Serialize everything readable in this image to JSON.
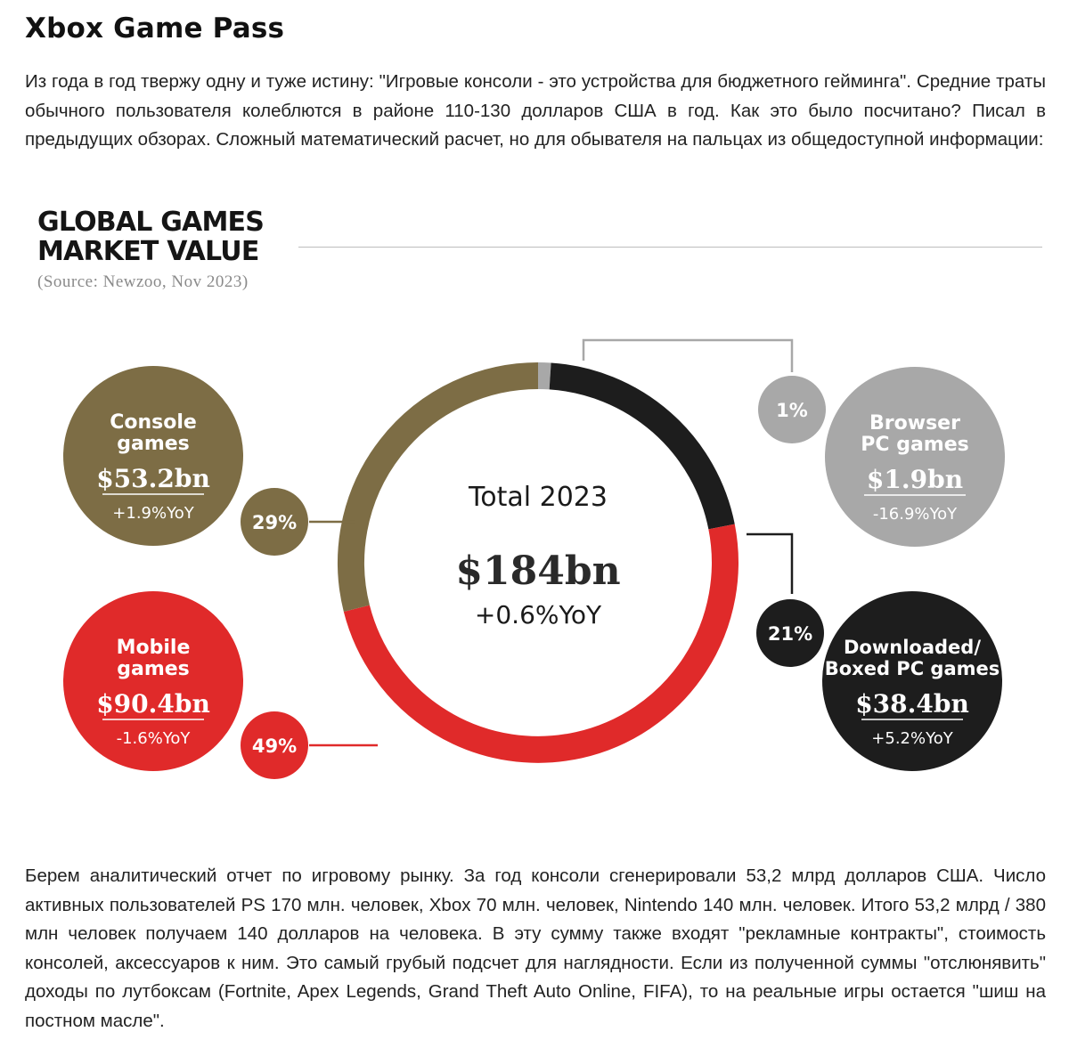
{
  "article": {
    "title": "Xbox Game Pass",
    "intro": "Из года в год твержу одну и туже истину: \"Игровые консоли - это устройства для бюджетного гейминга\". Средние траты обычного пользователя колеблются в районе 110-130 долларов США в год. Как это было посчитано? Писал в предыдущих обзорах. Сложный математический расчет, но для обывателя на пальцах из общедоступной информации:",
    "outro": "Берем аналитический отчет по игровому рынку. За год консоли сгенерировали 53,2 млрд долларов США. Число активных пользователей PS 170 млн. человек, Xbox 70 млн. человек, Nintendo 140 млн. человек. Итого 53,2 млрд / 380 млн человек получаем 140 долларов на человека. В эту сумму также входят \"рекламные контракты\", стоимость консолей, аксессуаров к ним. Это самый грубый подсчет для наглядности. Если из полученной суммы \"отслюнявить\" доходы по лутбоксам (Fortnite, Apex Legends, Grand Theft Auto Online, FIFA), то на реальные игры остается \"шиш на постном масле\"."
  },
  "chart_data": {
    "type": "pie",
    "title": "GLOBAL GAMES MARKET VALUE",
    "title_lines": [
      "GLOBAL GAMES",
      "MARKET VALUE"
    ],
    "source": "(Source: Newzoo, Nov 2023)",
    "center": {
      "label": "Total 2023",
      "value": "$184bn",
      "change": "+0.6%YoY"
    },
    "segments": [
      {
        "name": "Browser PC games",
        "name_lines": [
          "Browser",
          "PC games"
        ],
        "value_bn": 1.9,
        "value_label": "$1.9bn",
        "change": "-16.9%YoY",
        "share": 1,
        "share_label": "1%",
        "color": "#a8a8a8"
      },
      {
        "name": "Downloaded/Boxed PC games",
        "name_lines": [
          "Downloaded/",
          "Boxed PC games"
        ],
        "value_bn": 38.4,
        "value_label": "$38.4bn",
        "change": "+5.2%YoY",
        "share": 21,
        "share_label": "21%",
        "color": "#1d1d1d"
      },
      {
        "name": "Mobile games",
        "name_lines": [
          "Mobile",
          "games"
        ],
        "value_bn": 90.4,
        "value_label": "$90.4bn",
        "change": "-1.6%YoY",
        "share": 49,
        "share_label": "49%",
        "color": "#e02a2a"
      },
      {
        "name": "Console games",
        "name_lines": [
          "Console",
          "games"
        ],
        "value_bn": 53.2,
        "value_label": "$53.2bn",
        "change": "+1.9%YoY",
        "share": 29,
        "share_label": "29%",
        "color": "#7d6d45"
      }
    ]
  }
}
